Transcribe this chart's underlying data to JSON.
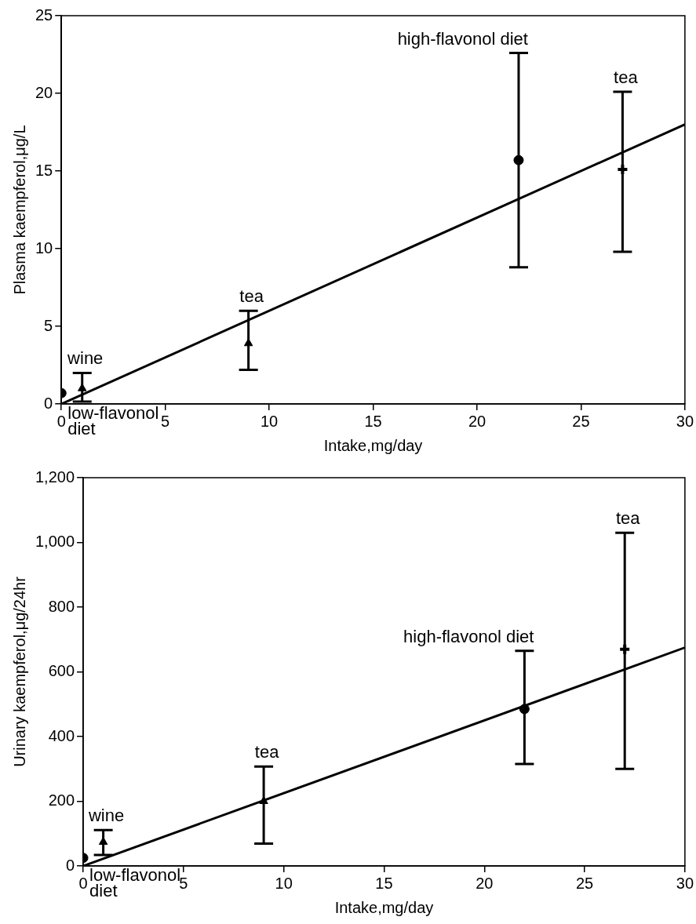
{
  "chart_data": [
    {
      "type": "scatter",
      "xlabel": "Intake,mg/day",
      "ylabel": "Plasma kaempferol,μg/L",
      "xlim": [
        0,
        30
      ],
      "xticks": [
        0,
        5,
        10,
        15,
        20,
        25,
        30
      ],
      "ylim": [
        0,
        25
      ],
      "yticks": [
        0,
        5,
        10,
        15,
        20,
        25
      ],
      "grid": false,
      "legend": false,
      "series": [
        {
          "marker": "circle",
          "color": "#000000",
          "x": [
            0,
            22
          ],
          "values": [
            0.7,
            15.7
          ],
          "errors": [
            null,
            [
              8.8,
              22.6
            ]
          ]
        },
        {
          "marker": "triangle",
          "color": "#000000",
          "x": [
            1,
            9
          ],
          "values": [
            1.0,
            3.9
          ],
          "errors": [
            [
              0.15,
              2.0
            ],
            [
              2.2,
              6.0
            ]
          ]
        },
        {
          "marker": "cross",
          "color": "#000000",
          "x": [
            27
          ],
          "values": [
            15.1
          ],
          "errors": [
            [
              9.8,
              20.1
            ]
          ]
        },
        {
          "type": "line",
          "marker": "none",
          "color": "#000000",
          "x": [
            0,
            30
          ],
          "values": [
            0,
            18
          ]
        }
      ],
      "annotations": [
        {
          "text": "low-flavonol diet",
          "x": 0,
          "y": 0
        },
        {
          "text": "wine",
          "x": 1,
          "y": 2.0
        },
        {
          "text": "tea",
          "x": 9,
          "y": 6.0
        },
        {
          "text": "high-flavonol diet",
          "x": 22,
          "y": 22.6
        },
        {
          "text": "tea",
          "x": 27,
          "y": 20.1
        }
      ]
    },
    {
      "type": "scatter",
      "xlabel": "Intake,mg/day",
      "ylabel": "Urinary kaempferol,μg/24hr",
      "xlim": [
        0,
        30
      ],
      "xticks": [
        0,
        5,
        10,
        15,
        20,
        25,
        30
      ],
      "ylim": [
        0,
        1200
      ],
      "yticks": [
        0,
        200,
        400,
        600,
        800,
        {
          "value": 1000,
          "label": "1,000"
        },
        {
          "value": 1200,
          "label": "1,200"
        }
      ],
      "grid": false,
      "legend": false,
      "series": [
        {
          "marker": "circle",
          "color": "#000000",
          "x": [
            0,
            22
          ],
          "values": [
            25,
            485
          ],
          "errors": [
            null,
            [
              315,
              665
            ]
          ]
        },
        {
          "marker": "triangle",
          "color": "#000000",
          "x": [
            1,
            9
          ],
          "values": [
            74,
            200
          ],
          "errors": [
            [
              34,
              111
            ],
            [
              69,
              307
            ]
          ]
        },
        {
          "marker": "cross",
          "color": "#000000",
          "x": [
            27
          ],
          "values": [
            670
          ],
          "errors": [
            [
              300,
              1030
            ]
          ]
        },
        {
          "type": "line",
          "marker": "none",
          "color": "#000000",
          "x": [
            0,
            30
          ],
          "values": [
            0,
            675
          ]
        }
      ],
      "annotations": [
        {
          "text": "low-flavonol diet",
          "x": 0,
          "y": 0
        },
        {
          "text": "wine",
          "x": 1,
          "y": 111
        },
        {
          "text": "tea",
          "x": 9,
          "y": 307
        },
        {
          "text": "high-flavonol diet",
          "x": 22,
          "y": 665
        },
        {
          "text": "tea",
          "x": 27,
          "y": 1030
        }
      ]
    }
  ]
}
